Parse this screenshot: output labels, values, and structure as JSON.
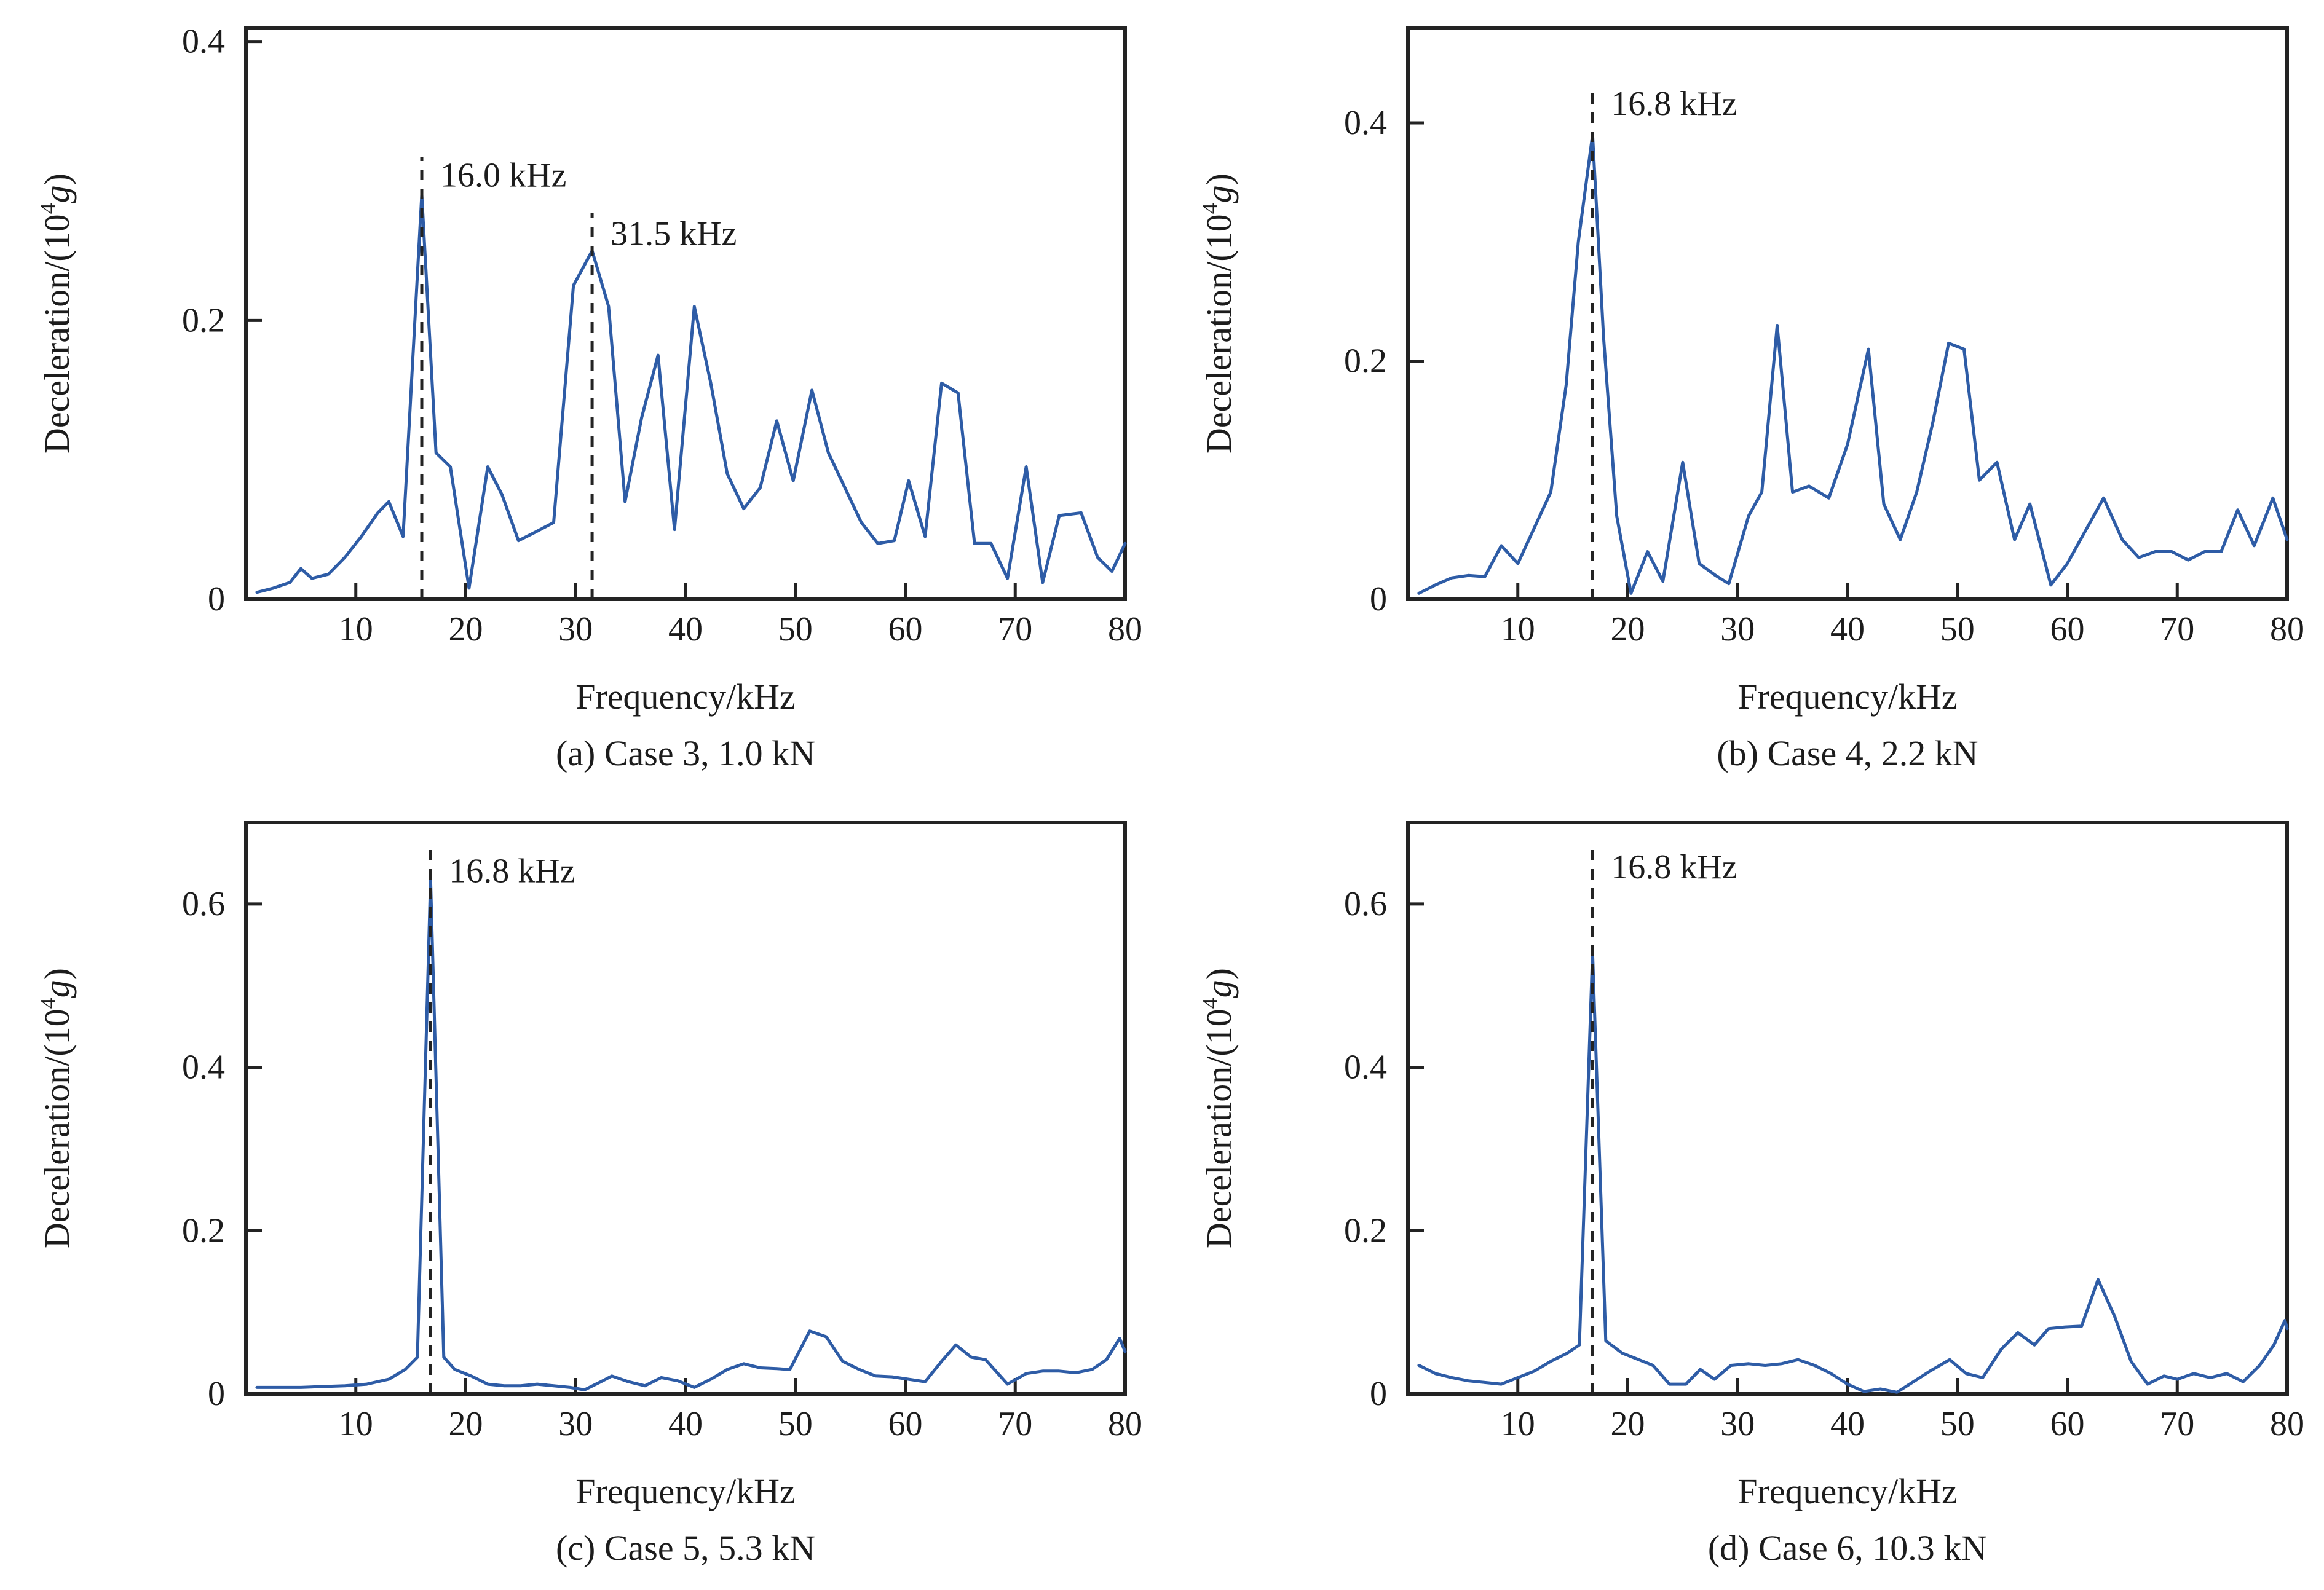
{
  "figure": {
    "background": "#ffffff",
    "axis_color": "#232323",
    "annotation_color": "#232323"
  },
  "chart_data": [
    {
      "type": "line",
      "id": "a",
      "caption": "(a) Case 3, 1.0 kN",
      "xlabel": "Frequency/kHz",
      "ylabel": "Deceleration/(10⁴g)",
      "ylabel_parts": {
        "base": "Deceleration/(10",
        "sup": "4",
        "ital": "g",
        "close": ")"
      },
      "line_color": "#2e5ca6",
      "xlim": [
        0,
        80
      ],
      "ylim": [
        0,
        0.41
      ],
      "xticks": [
        10,
        20,
        30,
        40,
        50,
        60,
        70,
        80
      ],
      "yticks": [
        {
          "v": 0,
          "label": "0"
        },
        {
          "v": 0.2,
          "label": "0.2"
        },
        {
          "v": 0.4,
          "label": "0.4"
        }
      ],
      "grid": false,
      "legend": null,
      "annotations": [
        {
          "x": 16.0,
          "label": "16.0 kHz",
          "line_top": 0.317,
          "label_y": 0.304
        },
        {
          "x": 31.5,
          "label": "31.5 kHz",
          "line_top": 0.277,
          "label_y": 0.262
        }
      ],
      "x": [
        1,
        2.5,
        4,
        5,
        6,
        7.5,
        9,
        10.5,
        12,
        13,
        14.3,
        16,
        17.3,
        18.6,
        20.3,
        22,
        23.3,
        24.8,
        26.3,
        28,
        29.8,
        31.5,
        33,
        34.5,
        36,
        37.5,
        39,
        40.8,
        42.3,
        43.8,
        45.3,
        46.8,
        48.3,
        49.8,
        51.5,
        53,
        54.5,
        56,
        57.5,
        59,
        60.3,
        61.8,
        63.3,
        64.8,
        66.3,
        67.8,
        69.3,
        71,
        72.5,
        74,
        76,
        77.5,
        78.8,
        80
      ],
      "y": [
        0.005,
        0.008,
        0.012,
        0.022,
        0.015,
        0.018,
        0.03,
        0.045,
        0.062,
        0.07,
        0.045,
        0.29,
        0.105,
        0.095,
        0.008,
        0.095,
        0.075,
        0.042,
        0.048,
        0.055,
        0.225,
        0.25,
        0.21,
        0.07,
        0.13,
        0.175,
        0.05,
        0.21,
        0.155,
        0.09,
        0.065,
        0.08,
        0.128,
        0.085,
        0.15,
        0.105,
        0.08,
        0.055,
        0.04,
        0.042,
        0.085,
        0.045,
        0.155,
        0.148,
        0.04,
        0.04,
        0.015,
        0.095,
        0.012,
        0.06,
        0.062,
        0.03,
        0.02,
        0.04
      ]
    },
    {
      "type": "line",
      "id": "b",
      "caption": "(b) Case 4, 2.2 kN",
      "xlabel": "Frequency/kHz",
      "ylabel": "Deceleration/(10⁴g)",
      "ylabel_parts": {
        "base": "Deceleration/(10",
        "sup": "4",
        "ital": "g",
        "close": ")"
      },
      "line_color": "#2e5ca6",
      "xlim": [
        0,
        80
      ],
      "ylim": [
        0,
        0.48
      ],
      "xticks": [
        10,
        20,
        30,
        40,
        50,
        60,
        70,
        80
      ],
      "yticks": [
        {
          "v": 0,
          "label": "0"
        },
        {
          "v": 0.2,
          "label": "0.2"
        },
        {
          "v": 0.4,
          "label": "0.4"
        }
      ],
      "grid": false,
      "legend": null,
      "annotations": [
        {
          "x": 16.8,
          "label": "16.8 kHz",
          "line_top": 0.432,
          "label_y": 0.416
        }
      ],
      "x": [
        1,
        2.5,
        4,
        5.5,
        7,
        8.5,
        10,
        11.5,
        13,
        14.4,
        15.5,
        16.8,
        17.8,
        19,
        20.3,
        21.8,
        23.2,
        25,
        26.5,
        28,
        29.2,
        31,
        32.2,
        33.6,
        35,
        36.5,
        38.3,
        40,
        41.9,
        43.3,
        44.8,
        46.3,
        47.8,
        49.2,
        50.6,
        52,
        53.6,
        55.2,
        56.6,
        58.5,
        60,
        61.5,
        63.3,
        65,
        66.5,
        68,
        69.5,
        71,
        72.5,
        74,
        75.5,
        77,
        78.7,
        80
      ],
      "y": [
        0.005,
        0.012,
        0.018,
        0.02,
        0.019,
        0.045,
        0.03,
        0.06,
        0.09,
        0.18,
        0.3,
        0.39,
        0.22,
        0.07,
        0.005,
        0.04,
        0.015,
        0.115,
        0.03,
        0.02,
        0.013,
        0.07,
        0.09,
        0.23,
        0.09,
        0.095,
        0.085,
        0.13,
        0.21,
        0.08,
        0.05,
        0.09,
        0.15,
        0.215,
        0.21,
        0.1,
        0.115,
        0.05,
        0.08,
        0.012,
        0.03,
        0.055,
        0.085,
        0.05,
        0.035,
        0.04,
        0.04,
        0.033,
        0.04,
        0.04,
        0.075,
        0.045,
        0.085,
        0.05
      ]
    },
    {
      "type": "line",
      "id": "c",
      "caption": "(c) Case 5, 5.3 kN",
      "xlabel": "Frequency/kHz",
      "ylabel": "Deceleration/(10⁴g)",
      "ylabel_parts": {
        "base": "Deceleration/(10",
        "sup": "4",
        "ital": "g",
        "close": ")"
      },
      "line_color": "#2e5ca6",
      "xlim": [
        0,
        80
      ],
      "ylim": [
        0,
        0.7
      ],
      "xticks": [
        10,
        20,
        30,
        40,
        50,
        60,
        70,
        80
      ],
      "yticks": [
        {
          "v": 0,
          "label": "0"
        },
        {
          "v": 0.2,
          "label": "0.2"
        },
        {
          "v": 0.4,
          "label": "0.4"
        },
        {
          "v": 0.6,
          "label": "0.6"
        }
      ],
      "grid": false,
      "legend": null,
      "annotations": [
        {
          "x": 16.8,
          "label": "16.8 kHz",
          "line_top": 0.668,
          "label_y": 0.64
        }
      ],
      "x": [
        1,
        3,
        5,
        7,
        9,
        11,
        13,
        14.5,
        15.6,
        16.8,
        18,
        19,
        20.5,
        22,
        23.5,
        25,
        26.5,
        28,
        29.5,
        30.8,
        32.3,
        33.3,
        34.8,
        36.3,
        37.8,
        39.3,
        40.8,
        42.3,
        43.8,
        45.3,
        46.8,
        48.3,
        49.5,
        51.3,
        52.8,
        54.3,
        55.8,
        57.3,
        58.8,
        60.3,
        61.8,
        63.3,
        64.6,
        66,
        67.3,
        69.3,
        71,
        72.5,
        74,
        75.5,
        77,
        78.3,
        79.5,
        80
      ],
      "y": [
        0.008,
        0.008,
        0.008,
        0.009,
        0.01,
        0.012,
        0.018,
        0.03,
        0.045,
        0.63,
        0.045,
        0.03,
        0.022,
        0.012,
        0.01,
        0.01,
        0.012,
        0.01,
        0.008,
        0.005,
        0.015,
        0.022,
        0.015,
        0.01,
        0.02,
        0.016,
        0.008,
        0.018,
        0.03,
        0.037,
        0.032,
        0.031,
        0.03,
        0.077,
        0.07,
        0.04,
        0.03,
        0.022,
        0.021,
        0.018,
        0.015,
        0.04,
        0.06,
        0.045,
        0.042,
        0.012,
        0.025,
        0.028,
        0.028,
        0.026,
        0.03,
        0.042,
        0.068,
        0.052
      ]
    },
    {
      "type": "line",
      "id": "d",
      "caption": "(d) Case 6, 10.3 kN",
      "xlabel": "Frequency/kHz",
      "ylabel": "Deceleration/(10⁴g)",
      "ylabel_parts": {
        "base": "Deceleration/(10",
        "sup": "4",
        "ital": "g",
        "close": ")"
      },
      "line_color": "#2e5ca6",
      "xlim": [
        0,
        80
      ],
      "ylim": [
        0,
        0.7
      ],
      "xticks": [
        10,
        20,
        30,
        40,
        50,
        60,
        70,
        80
      ],
      "yticks": [
        {
          "v": 0,
          "label": "0"
        },
        {
          "v": 0.2,
          "label": "0.2"
        },
        {
          "v": 0.4,
          "label": "0.4"
        },
        {
          "v": 0.6,
          "label": "0.6"
        }
      ],
      "grid": false,
      "legend": null,
      "annotations": [
        {
          "x": 16.8,
          "label": "16.8 kHz",
          "line_top": 0.672,
          "label_y": 0.645
        }
      ],
      "x": [
        1,
        2.5,
        4,
        5.5,
        7,
        8.5,
        10,
        11.5,
        13,
        14.5,
        15.6,
        16.8,
        18,
        19.5,
        21,
        22.3,
        23.8,
        25.3,
        26.6,
        27.9,
        29.4,
        31,
        32.5,
        34,
        35.5,
        37,
        38.5,
        40,
        41.5,
        43,
        44.5,
        46,
        47.5,
        49.3,
        50.8,
        52.3,
        54,
        55.5,
        57,
        58.3,
        59.8,
        61.3,
        62.8,
        64.3,
        65.8,
        67.3,
        68.8,
        70,
        71.5,
        73,
        74.5,
        76,
        77.5,
        78.8,
        79.8,
        80
      ],
      "y": [
        0.035,
        0.025,
        0.02,
        0.016,
        0.014,
        0.012,
        0.02,
        0.028,
        0.04,
        0.05,
        0.06,
        0.54,
        0.065,
        0.05,
        0.042,
        0.035,
        0.012,
        0.012,
        0.03,
        0.018,
        0.035,
        0.037,
        0.035,
        0.037,
        0.042,
        0.035,
        0.025,
        0.012,
        0.003,
        0.006,
        0.002,
        0.015,
        0.028,
        0.042,
        0.025,
        0.02,
        0.055,
        0.075,
        0.06,
        0.08,
        0.082,
        0.083,
        0.14,
        0.095,
        0.04,
        0.012,
        0.022,
        0.018,
        0.025,
        0.02,
        0.025,
        0.015,
        0.035,
        0.06,
        0.09,
        0.08
      ]
    }
  ]
}
